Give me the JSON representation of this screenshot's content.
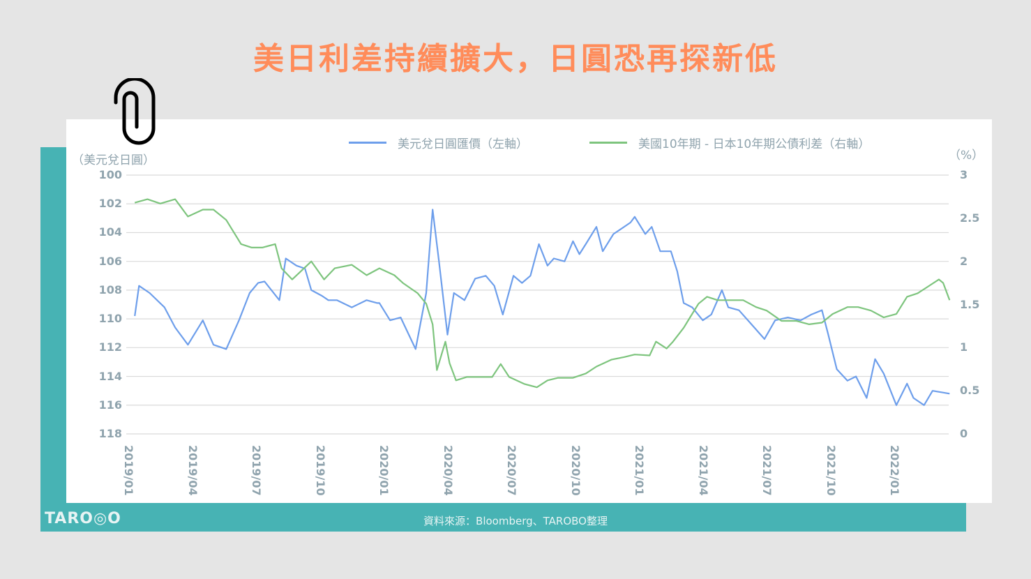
{
  "title": "美日利差持續擴大，日圓恐再探新低",
  "legend": {
    "series1": "美元兌日圓匯價（左軸）",
    "series2": "美國10年期 - 日本10年期公債利差（右軸）"
  },
  "axis": {
    "left_title": "（美元兌日圓）",
    "right_title": "（%）"
  },
  "footer": {
    "logo": "TARO◎O",
    "source": "資料來源：Bloomberg、TAROBO整理"
  },
  "colors": {
    "title": "#ff8c5a",
    "teal": "#47b3b4",
    "usdjpy": "#6d9eeb",
    "spread": "#7dc47d",
    "axis_text": "#8fa3ad",
    "grid": "#d9d9d9"
  },
  "chart_data": {
    "type": "line",
    "title": "美日利差持續擴大，日圓恐再探新低",
    "xlabel": "",
    "ylabel": "美元兌日圓",
    "ylabel_right": "%",
    "x_tick_labels": [
      "2019/01",
      "2019/04",
      "2019/07",
      "2019/10",
      "2020/01",
      "2020/04",
      "2020/07",
      "2020/10",
      "2021/01",
      "2021/04",
      "2021/07",
      "2021/10",
      "2022/01"
    ],
    "left_axis": {
      "ticks": [
        "100",
        "102",
        "104",
        "106",
        "108",
        "110",
        "112",
        "114",
        "116",
        "118"
      ],
      "range": [
        100,
        118
      ],
      "inverted": true
    },
    "right_axis": {
      "ticks": [
        "3",
        "2.5",
        "2",
        "1.5",
        "1",
        "0.5",
        "0"
      ],
      "range": [
        0,
        3
      ]
    },
    "x_unit": "months since 2019/01",
    "x_range": [
      0,
      38.6
    ],
    "grid": true,
    "legend_position": "top",
    "series": [
      {
        "name": "美元兌日圓匯價（左軸）",
        "axis": "left",
        "x": [
          0.3,
          0.5,
          1.0,
          1.7,
          2.2,
          2.8,
          3.5,
          4.0,
          4.6,
          5.2,
          5.7,
          6.1,
          6.4,
          7.1,
          7.4,
          7.9,
          8.3,
          8.6,
          9.1,
          9.4,
          9.8,
          10.5,
          11.2,
          11.7,
          11.8,
          12.3,
          12.8,
          13.5,
          14.0,
          14.3,
          14.6,
          15.0,
          15.3,
          15.8,
          16.3,
          16.8,
          17.2,
          17.6,
          18.1,
          18.5,
          18.9,
          19.3,
          19.7,
          20.0,
          20.5,
          20.9,
          21.2,
          21.5,
          22.0,
          22.3,
          22.8,
          23.1,
          23.6,
          23.8,
          24.3,
          24.6,
          25.0,
          25.5,
          25.8,
          26.1,
          26.5,
          27.0,
          27.4,
          27.9,
          28.2,
          28.7,
          29.3,
          29.9,
          30.4,
          31.0,
          31.6,
          32.1,
          32.6,
          32.9,
          33.3,
          33.8,
          34.2,
          34.7,
          35.1,
          35.5,
          36.1,
          36.6,
          36.9,
          37.4,
          37.8,
          38.6
        ],
        "values": [
          109.8,
          107.7,
          108.2,
          109.2,
          110.6,
          111.8,
          110.1,
          111.8,
          112.1,
          110.1,
          108.2,
          107.5,
          107.4,
          108.7,
          105.8,
          106.3,
          106.5,
          108.0,
          108.4,
          108.7,
          108.7,
          109.2,
          108.7,
          108.9,
          108.9,
          110.1,
          109.9,
          112.1,
          108.2,
          102.4,
          106.0,
          111.1,
          108.2,
          108.7,
          107.2,
          107.0,
          107.7,
          109.7,
          107.0,
          107.5,
          107.0,
          104.8,
          106.3,
          105.8,
          106.0,
          104.6,
          105.5,
          104.8,
          103.6,
          105.3,
          104.1,
          103.8,
          103.3,
          102.9,
          104.1,
          103.6,
          105.3,
          105.3,
          106.7,
          108.9,
          109.2,
          110.1,
          109.7,
          108.0,
          109.2,
          109.4,
          110.4,
          111.4,
          110.1,
          109.9,
          110.1,
          109.7,
          109.4,
          111.1,
          113.5,
          114.3,
          114.0,
          115.5,
          112.8,
          113.8,
          116.0,
          114.5,
          115.5,
          116.0,
          115.0,
          115.2
        ]
      },
      {
        "name": "美國10年期 - 日本10年期公債利差（右軸）",
        "axis": "right",
        "x": [
          0.3,
          0.9,
          1.5,
          2.2,
          2.8,
          3.5,
          4.0,
          4.6,
          5.3,
          5.8,
          6.3,
          6.9,
          7.2,
          7.7,
          8.6,
          9.2,
          9.7,
          10.5,
          11.2,
          11.8,
          12.5,
          12.9,
          13.6,
          14.0,
          14.3,
          14.5,
          14.9,
          15.1,
          15.4,
          15.9,
          16.6,
          17.1,
          17.5,
          17.9,
          18.6,
          19.2,
          19.7,
          20.2,
          20.9,
          21.5,
          22.0,
          22.7,
          23.3,
          23.8,
          24.5,
          24.8,
          25.3,
          25.6,
          26.1,
          26.4,
          26.8,
          27.2,
          27.7,
          28.4,
          28.9,
          29.5,
          30.0,
          30.7,
          31.4,
          32.0,
          32.6,
          33.1,
          33.8,
          34.3,
          34.9,
          35.5,
          36.1,
          36.6,
          37.1,
          37.6,
          38.1,
          38.3,
          38.6
        ],
        "values": [
          2.68,
          2.72,
          2.67,
          2.72,
          2.52,
          2.6,
          2.6,
          2.48,
          2.2,
          2.16,
          2.16,
          2.2,
          1.92,
          1.79,
          2.0,
          1.79,
          1.92,
          1.96,
          1.84,
          1.92,
          1.84,
          1.75,
          1.63,
          1.51,
          1.27,
          0.74,
          1.07,
          0.82,
          0.62,
          0.66,
          0.66,
          0.66,
          0.81,
          0.66,
          0.58,
          0.54,
          0.62,
          0.65,
          0.65,
          0.7,
          0.78,
          0.86,
          0.89,
          0.92,
          0.91,
          1.07,
          0.99,
          1.07,
          1.23,
          1.35,
          1.51,
          1.59,
          1.55,
          1.55,
          1.55,
          1.47,
          1.43,
          1.31,
          1.31,
          1.27,
          1.29,
          1.39,
          1.47,
          1.47,
          1.43,
          1.35,
          1.39,
          1.59,
          1.63,
          1.71,
          1.79,
          1.75,
          1.55
        ]
      }
    ]
  }
}
